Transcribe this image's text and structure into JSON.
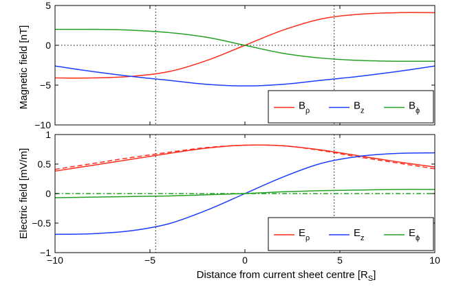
{
  "chart_data": [
    {
      "type": "line",
      "ylabel": "Magnetic field [nT]",
      "xlim": [
        -10,
        10
      ],
      "ylim": [
        -10,
        5
      ],
      "xticks": [
        "−10",
        "−5",
        "0",
        "5",
        "10"
      ],
      "yticks": [
        "−10",
        "−5",
        "0",
        "5"
      ],
      "grid": "dotted reference lines at x = -4.7, x = 4.7 and y = 0",
      "legend_position": "bottom-right",
      "legend": [
        {
          "base": "B",
          "sub": "ρ"
        },
        {
          "base": "B",
          "sub": "z"
        },
        {
          "base": "B",
          "sub": "ϕ"
        }
      ],
      "series": [
        {
          "name": "Bρ",
          "color": "#ff2a1a",
          "dash": "solid",
          "x": [
            -10,
            -8,
            -6,
            -4,
            -2,
            0,
            2,
            4,
            6,
            8,
            10
          ],
          "y": [
            -4.1,
            -4.1,
            -3.9,
            -3.3,
            -1.9,
            0.0,
            1.9,
            3.3,
            3.9,
            4.1,
            4.1
          ]
        },
        {
          "name": "Bz",
          "color": "#1a3cff",
          "dash": "solid",
          "x": [
            -10,
            -8,
            -6,
            -4,
            -2,
            0,
            2,
            4,
            6,
            8,
            10
          ],
          "y": [
            -2.6,
            -3.3,
            -3.9,
            -4.4,
            -4.9,
            -5.1,
            -4.9,
            -4.4,
            -3.9,
            -3.3,
            -2.6
          ]
        },
        {
          "name": "Bϕ",
          "color": "#22a022",
          "dash": "solid",
          "x": [
            -10,
            -8,
            -6,
            -4,
            -2,
            0,
            2,
            4,
            6,
            8,
            10
          ],
          "y": [
            2.0,
            2.0,
            1.9,
            1.6,
            1.0,
            0.0,
            -1.0,
            -1.6,
            -1.9,
            -2.0,
            -2.0
          ]
        }
      ]
    },
    {
      "type": "line",
      "ylabel": "Electric field [mV/m]",
      "xlabel": "Distance from current sheet centre [RS]",
      "xlabel_main": "Distance from current sheet centre [R",
      "xlabel_sub": "S",
      "xlabel_close": "]",
      "xlim": [
        -10,
        10
      ],
      "ylim": [
        -1,
        1
      ],
      "xticks": [
        "−10",
        "−5",
        "0",
        "5",
        "10"
      ],
      "yticks": [
        "−1",
        "−0.5",
        "0",
        "0.5",
        "1"
      ],
      "grid": "dotted reference lines at x = -4.7 and x = 4.7",
      "legend_position": "bottom-right",
      "legend": [
        {
          "base": "E",
          "sub": "ρ"
        },
        {
          "base": "E",
          "sub": "z"
        },
        {
          "base": "E",
          "sub": "ϕ"
        }
      ],
      "series": [
        {
          "name": "Eρ",
          "color": "#ff2a1a",
          "dash": "solid",
          "x": [
            -10,
            -8,
            -6,
            -4,
            -2,
            0,
            2,
            4,
            6,
            8,
            10
          ],
          "y": [
            0.38,
            0.48,
            0.58,
            0.68,
            0.77,
            0.82,
            0.81,
            0.74,
            0.64,
            0.54,
            0.45
          ]
        },
        {
          "name": "Eρ",
          "color": "#ff2a1a",
          "dash": "dashed",
          "x": [
            -10,
            -8,
            -6,
            -4,
            -2,
            0,
            2,
            4,
            6,
            8,
            10
          ],
          "y": [
            0.41,
            0.51,
            0.61,
            0.7,
            0.78,
            0.82,
            0.81,
            0.73,
            0.62,
            0.52,
            0.42
          ]
        },
        {
          "name": "Ez",
          "color": "#1a3cff",
          "dash": "solid",
          "x": [
            -10,
            -8,
            -6,
            -4,
            -2,
            0,
            2,
            4,
            6,
            8,
            10
          ],
          "y": [
            -0.69,
            -0.68,
            -0.63,
            -0.51,
            -0.28,
            0.0,
            0.28,
            0.51,
            0.63,
            0.68,
            0.69
          ]
        },
        {
          "name": "Eϕ",
          "color": "#22a022",
          "dash": "solid",
          "x": [
            -10,
            -8,
            -6,
            -4,
            -2,
            0,
            2,
            4,
            6,
            8,
            10
          ],
          "y": [
            -0.07,
            -0.06,
            -0.05,
            -0.04,
            -0.02,
            0.0,
            0.03,
            0.05,
            0.06,
            0.07,
            0.07
          ]
        },
        {
          "name": "Eϕ",
          "color": "#22a022",
          "dash": "dashdot",
          "x": [
            -10,
            10
          ],
          "y": [
            0.0,
            0.0
          ]
        }
      ]
    }
  ]
}
